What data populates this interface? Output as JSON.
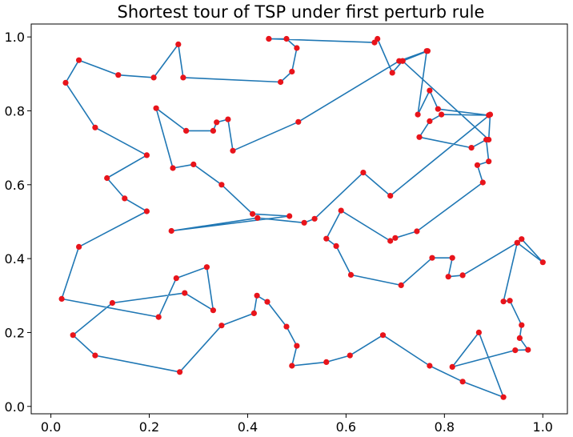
{
  "chart_data": {
    "type": "line",
    "title": "Shortest tour of TSP under first perturb rule",
    "xlabel": "",
    "ylabel": "",
    "xlim": [
      -0.04,
      1.05
    ],
    "ylim": [
      -0.02,
      1.035
    ],
    "xticks": [
      0.0,
      0.2,
      0.4,
      0.6,
      0.8,
      1.0
    ],
    "yticks": [
      0.0,
      0.2,
      0.4,
      0.6,
      0.8,
      1.0
    ],
    "xtick_labels": [
      "0.0",
      "0.2",
      "0.4",
      "0.6",
      "0.8",
      "1.0"
    ],
    "ytick_labels": [
      "0.0",
      "0.2",
      "0.4",
      "0.6",
      "0.8",
      "1.0"
    ],
    "grid": false,
    "line_color": "#1f77b4",
    "marker_color": "#e8141b",
    "series": [
      {
        "x": [
          0.443,
          0.479,
          0.5,
          0.49,
          0.467,
          0.269,
          0.259,
          0.209,
          0.137,
          0.057,
          0.03,
          0.09,
          0.195,
          0.114,
          0.15,
          0.195,
          0.057,
          0.022,
          0.219,
          0.255,
          0.317,
          0.33,
          0.272,
          0.125,
          0.045,
          0.09,
          0.262,
          0.347,
          0.413,
          0.419,
          0.44,
          0.479,
          0.5,
          0.49,
          0.56,
          0.608,
          0.675,
          0.77,
          0.837,
          0.92,
          0.87,
          0.816,
          0.944,
          0.97,
          0.953,
          0.957,
          0.933,
          0.92,
          0.948,
          1.0,
          0.957,
          0.948,
          0.837,
          0.808,
          0.816,
          0.775,
          0.712,
          0.61,
          0.58,
          0.56,
          0.59,
          0.69,
          0.7,
          0.744,
          0.878,
          0.867,
          0.89,
          0.885,
          0.855,
          0.749,
          0.77,
          0.794,
          0.89,
          0.787,
          0.77,
          0.746,
          0.764,
          0.708,
          0.503,
          0.37,
          0.36,
          0.337,
          0.33,
          0.275,
          0.214,
          0.248,
          0.29,
          0.347,
          0.41,
          0.485,
          0.245,
          0.42,
          0.515,
          0.536,
          0.635,
          0.69,
          0.893,
          0.89,
          0.715,
          0.766,
          0.715,
          0.694,
          0.664,
          0.658,
          0.443
        ],
        "y": [
          0.995,
          0.995,
          0.97,
          0.906,
          0.878,
          0.89,
          0.98,
          0.89,
          0.897,
          0.937,
          0.876,
          0.755,
          0.68,
          0.618,
          0.563,
          0.528,
          0.432,
          0.291,
          0.242,
          0.347,
          0.377,
          0.26,
          0.307,
          0.28,
          0.193,
          0.138,
          0.093,
          0.219,
          0.252,
          0.3,
          0.283,
          0.216,
          0.164,
          0.11,
          0.12,
          0.138,
          0.193,
          0.11,
          0.067,
          0.025,
          0.2,
          0.107,
          0.152,
          0.153,
          0.185,
          0.22,
          0.286,
          0.284,
          0.443,
          0.39,
          0.453,
          0.443,
          0.355,
          0.351,
          0.402,
          0.402,
          0.328,
          0.356,
          0.434,
          0.454,
          0.53,
          0.448,
          0.456,
          0.474,
          0.606,
          0.653,
          0.663,
          0.722,
          0.7,
          0.729,
          0.772,
          0.79,
          0.788,
          0.805,
          0.855,
          0.79,
          0.962,
          0.935,
          0.77,
          0.692,
          0.777,
          0.769,
          0.746,
          0.746,
          0.807,
          0.645,
          0.655,
          0.6,
          0.521,
          0.515,
          0.475,
          0.51,
          0.497,
          0.508,
          0.633,
          0.57,
          0.79,
          0.722,
          0.935,
          0.962,
          0.935,
          0.903,
          0.995,
          0.985,
          0.995
        ]
      }
    ]
  }
}
